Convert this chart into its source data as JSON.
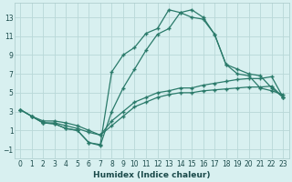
{
  "xlabel": "Humidex (Indice chaleur)",
  "bg_color": "#d8f0f0",
  "grid_color": "#b8d8d8",
  "line_color": "#2a7a6a",
  "xlim": [
    -0.5,
    23.5
  ],
  "ylim": [
    -2.0,
    14.5
  ],
  "xticks": [
    0,
    1,
    2,
    3,
    4,
    5,
    6,
    7,
    8,
    9,
    10,
    11,
    12,
    13,
    14,
    15,
    16,
    17,
    18,
    19,
    20,
    21,
    22,
    23
  ],
  "yticks": [
    -1,
    1,
    3,
    5,
    7,
    9,
    11,
    13
  ],
  "line1_x": [
    0,
    1,
    2,
    3,
    4,
    5,
    6,
    7,
    8,
    9,
    10,
    11,
    12,
    13,
    14,
    15,
    16,
    17,
    18,
    19,
    20,
    21,
    22,
    23
  ],
  "line1_y": [
    3.2,
    2.5,
    2.0,
    2.0,
    1.8,
    1.5,
    1.0,
    0.5,
    2.0,
    3.0,
    4.0,
    4.5,
    5.0,
    5.2,
    5.5,
    5.5,
    5.8,
    6.0,
    6.2,
    6.4,
    6.5,
    6.5,
    6.7,
    4.5
  ],
  "line2_x": [
    0,
    1,
    2,
    3,
    4,
    5,
    6,
    7,
    8,
    9,
    10,
    11,
    12,
    13,
    14,
    15,
    16,
    17,
    18,
    19,
    20,
    21,
    22,
    23
  ],
  "line2_y": [
    3.2,
    2.5,
    1.8,
    1.8,
    1.5,
    1.2,
    0.8,
    0.5,
    1.5,
    2.5,
    3.5,
    4.0,
    4.5,
    4.8,
    5.0,
    5.0,
    5.2,
    5.3,
    5.4,
    5.5,
    5.6,
    5.6,
    5.7,
    4.5
  ],
  "line3_x": [
    0,
    1,
    2,
    3,
    4,
    5,
    6,
    7,
    8,
    9,
    10,
    11,
    12,
    13,
    14,
    15,
    16,
    17,
    18,
    19,
    20,
    21,
    22,
    23
  ],
  "line3_y": [
    3.2,
    2.5,
    1.8,
    1.7,
    1.2,
    1.0,
    -0.3,
    -0.6,
    3.0,
    5.5,
    7.5,
    9.5,
    11.2,
    11.8,
    13.5,
    13.8,
    13.0,
    11.2,
    8.0,
    7.5,
    7.0,
    6.8,
    5.5,
    4.5
  ],
  "line4_x": [
    1,
    2,
    3,
    4,
    5,
    6,
    7,
    8,
    9,
    10,
    11,
    12,
    13,
    14,
    15,
    16,
    17,
    18,
    19,
    20,
    21,
    22,
    23
  ],
  "line4_y": [
    2.5,
    1.8,
    1.7,
    1.2,
    1.0,
    -0.3,
    -0.5,
    7.2,
    9.0,
    9.8,
    11.3,
    11.8,
    13.8,
    13.5,
    13.0,
    12.8,
    11.2,
    8.0,
    7.0,
    6.8,
    5.5,
    5.2,
    4.8
  ]
}
